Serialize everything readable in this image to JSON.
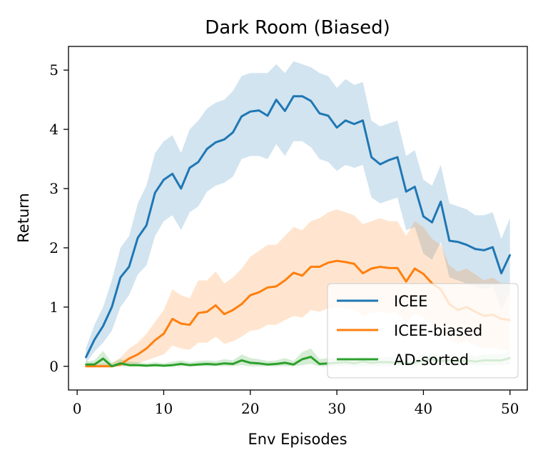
{
  "chart_data": {
    "type": "line",
    "title": "Dark Room (Biased)",
    "xlabel": "Env Episodes",
    "ylabel": "Return",
    "xlim": [
      -1,
      52
    ],
    "ylim": [
      -0.4,
      5.4
    ],
    "xticks": [
      0,
      10,
      20,
      30,
      40,
      50
    ],
    "yticks": [
      0,
      1,
      2,
      3,
      4,
      5
    ],
    "legend_position": "lower-right",
    "series": [
      {
        "name": "ICEE",
        "color": "#1f77b4",
        "x": [
          1,
          2,
          3,
          4,
          5,
          6,
          7,
          8,
          9,
          10,
          11,
          12,
          13,
          14,
          15,
          16,
          17,
          18,
          19,
          20,
          21,
          22,
          23,
          24,
          25,
          26,
          27,
          28,
          29,
          30,
          31,
          32,
          33,
          34,
          35,
          36,
          37,
          38,
          39,
          40,
          41,
          42,
          43,
          44,
          45,
          46,
          47,
          48,
          49,
          50
        ],
        "values": [
          0.15,
          0.45,
          0.68,
          1.0,
          1.5,
          1.68,
          2.17,
          2.38,
          2.93,
          3.15,
          3.25,
          3.0,
          3.35,
          3.45,
          3.67,
          3.78,
          3.83,
          3.95,
          4.22,
          4.3,
          4.32,
          4.23,
          4.5,
          4.31,
          4.56,
          4.56,
          4.48,
          4.27,
          4.23,
          4.03,
          4.15,
          4.09,
          4.15,
          3.53,
          3.41,
          3.48,
          3.53,
          2.95,
          3.03,
          2.53,
          2.43,
          2.78,
          2.12,
          2.1,
          2.05,
          1.98,
          1.96,
          2.01,
          1.57,
          1.88
        ],
        "lower": [
          0.05,
          0.25,
          0.4,
          0.6,
          1.0,
          1.2,
          1.55,
          1.7,
          2.2,
          2.45,
          2.55,
          2.3,
          2.6,
          2.7,
          2.95,
          3.05,
          3.1,
          3.2,
          3.5,
          3.55,
          3.55,
          3.5,
          3.75,
          3.55,
          3.8,
          3.8,
          3.7,
          3.5,
          3.45,
          3.3,
          3.4,
          3.35,
          3.4,
          2.85,
          2.75,
          2.8,
          2.85,
          2.3,
          2.35,
          1.9,
          1.8,
          2.1,
          1.5,
          1.45,
          1.4,
          1.35,
          1.3,
          1.35,
          0.95,
          1.25
        ],
        "upper": [
          0.3,
          0.7,
          1.0,
          1.45,
          2.0,
          2.2,
          2.75,
          3.05,
          3.6,
          3.8,
          3.9,
          3.6,
          4.0,
          4.15,
          4.35,
          4.45,
          4.5,
          4.65,
          4.9,
          4.95,
          4.95,
          4.95,
          5.1,
          4.95,
          5.15,
          5.1,
          5.05,
          4.95,
          4.9,
          4.7,
          4.85,
          4.75,
          4.8,
          4.15,
          4.05,
          4.1,
          4.15,
          3.55,
          3.65,
          3.15,
          3.05,
          3.4,
          2.75,
          2.7,
          2.65,
          2.55,
          2.55,
          2.6,
          2.15,
          2.5
        ]
      },
      {
        "name": "ICEE-biased",
        "color": "#ff7f0e",
        "x": [
          1,
          2,
          3,
          4,
          5,
          6,
          7,
          8,
          9,
          10,
          11,
          12,
          13,
          14,
          15,
          16,
          17,
          18,
          19,
          20,
          21,
          22,
          23,
          24,
          25,
          26,
          27,
          28,
          29,
          30,
          31,
          32,
          33,
          34,
          35,
          36,
          37,
          38,
          39,
          40,
          41,
          42,
          43,
          44,
          45,
          46,
          47,
          48,
          49,
          50
        ],
        "values": [
          0.0,
          0.0,
          0.0,
          0.0,
          0.03,
          0.13,
          0.2,
          0.3,
          0.44,
          0.55,
          0.8,
          0.72,
          0.7,
          0.9,
          0.92,
          1.03,
          0.88,
          0.95,
          1.05,
          1.2,
          1.25,
          1.33,
          1.35,
          1.45,
          1.58,
          1.53,
          1.68,
          1.68,
          1.75,
          1.78,
          1.76,
          1.73,
          1.57,
          1.65,
          1.68,
          1.66,
          1.66,
          1.43,
          1.65,
          1.56,
          1.4,
          1.3,
          1.05,
          0.95,
          1.0,
          0.92,
          0.85,
          0.87,
          0.8,
          0.78
        ],
        "lower": [
          0.0,
          0.0,
          0.0,
          0.0,
          0.0,
          0.02,
          0.05,
          0.1,
          0.15,
          0.2,
          0.35,
          0.3,
          0.28,
          0.4,
          0.4,
          0.5,
          0.38,
          0.42,
          0.5,
          0.6,
          0.62,
          0.7,
          0.7,
          0.78,
          0.85,
          0.82,
          0.95,
          0.92,
          0.98,
          1.0,
          0.98,
          0.95,
          0.85,
          0.9,
          0.92,
          0.9,
          0.9,
          0.72,
          0.9,
          0.82,
          0.7,
          0.62,
          0.45,
          0.38,
          0.42,
          0.35,
          0.3,
          0.32,
          0.28,
          0.25
        ],
        "upper": [
          0.05,
          0.05,
          0.05,
          0.05,
          0.15,
          0.3,
          0.4,
          0.55,
          0.75,
          0.95,
          1.3,
          1.2,
          1.15,
          1.45,
          1.45,
          1.6,
          1.4,
          1.5,
          1.65,
          1.85,
          1.95,
          2.05,
          2.05,
          2.2,
          2.35,
          2.3,
          2.45,
          2.5,
          2.6,
          2.65,
          2.6,
          2.55,
          2.4,
          2.45,
          2.5,
          2.45,
          2.45,
          2.2,
          2.45,
          2.35,
          2.15,
          2.05,
          1.7,
          1.6,
          1.65,
          1.55,
          1.45,
          1.5,
          1.4,
          1.35
        ]
      },
      {
        "name": "AD-sorted",
        "color": "#2ca02c",
        "x": [
          1,
          2,
          3,
          4,
          5,
          6,
          7,
          8,
          9,
          10,
          11,
          12,
          13,
          14,
          15,
          16,
          17,
          18,
          19,
          20,
          21,
          22,
          23,
          24,
          25,
          26,
          27,
          28,
          29,
          30,
          31,
          32,
          33,
          34,
          35,
          36,
          37,
          38,
          39,
          40,
          41,
          42,
          43,
          44,
          45,
          46,
          47,
          48,
          49,
          50
        ],
        "values": [
          0.03,
          0.03,
          0.13,
          0.0,
          0.05,
          0.02,
          0.02,
          0.01,
          0.02,
          0.01,
          0.02,
          0.04,
          0.02,
          0.03,
          0.04,
          0.03,
          0.05,
          0.04,
          0.1,
          0.06,
          0.05,
          0.03,
          0.04,
          0.06,
          0.03,
          0.12,
          0.16,
          0.04,
          0.05,
          0.06,
          0.07,
          0.05,
          0.08,
          0.06,
          0.07,
          0.07,
          0.06,
          0.05,
          0.06,
          0.1,
          0.12,
          0.09,
          0.1,
          0.08,
          0.1,
          0.08,
          0.1,
          0.1,
          0.1,
          0.14
        ],
        "lower": [
          0.0,
          0.0,
          0.02,
          0.0,
          0.0,
          0.0,
          0.0,
          0.0,
          0.0,
          0.0,
          0.0,
          0.0,
          0.0,
          0.0,
          0.0,
          0.0,
          0.0,
          0.0,
          0.02,
          0.0,
          0.0,
          0.0,
          0.0,
          0.0,
          0.0,
          0.02,
          0.04,
          0.0,
          0.0,
          0.0,
          0.0,
          0.0,
          0.0,
          0.0,
          0.0,
          0.0,
          0.0,
          0.0,
          0.0,
          0.02,
          0.03,
          0.01,
          0.02,
          0.01,
          0.02,
          0.01,
          0.02,
          0.02,
          0.02,
          0.04
        ],
        "upper": [
          0.08,
          0.1,
          0.26,
          0.06,
          0.12,
          0.08,
          0.07,
          0.05,
          0.07,
          0.05,
          0.08,
          0.1,
          0.07,
          0.09,
          0.1,
          0.09,
          0.12,
          0.1,
          0.2,
          0.14,
          0.12,
          0.09,
          0.1,
          0.14,
          0.09,
          0.24,
          0.3,
          0.12,
          0.14,
          0.15,
          0.16,
          0.13,
          0.18,
          0.14,
          0.16,
          0.16,
          0.14,
          0.13,
          0.15,
          0.2,
          0.22,
          0.18,
          0.2,
          0.17,
          0.2,
          0.17,
          0.2,
          0.2,
          0.2,
          0.25
        ]
      }
    ]
  }
}
